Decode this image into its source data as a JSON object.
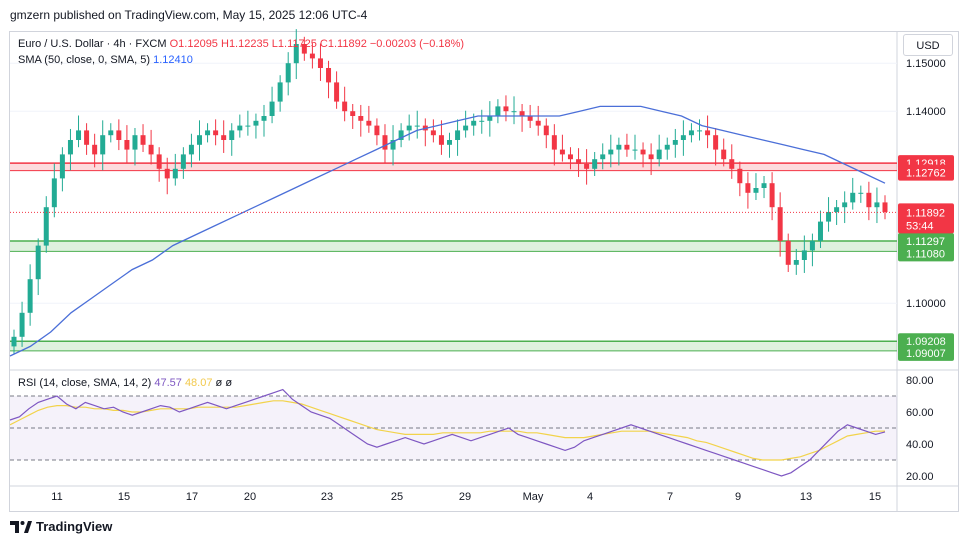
{
  "header": {
    "published_by": "gmzern published on TradingView.com, May 15, 2025 12:06 UTC-4"
  },
  "legend": {
    "symbol": "Euro / U.S. Dollar · 4h · FXCM",
    "open": "O1.12095",
    "high": "H1.12235",
    "low": "L1.11725",
    "close": "C1.11892",
    "change": "−0.00203 (−0.18%)",
    "sma_label": "SMA (50, close, 0, SMA, 5)",
    "sma_value": "1.12410"
  },
  "rsi_legend": {
    "label": "RSI (14, close, SMA, 14, 2)",
    "rsi_value": "47.57",
    "sma_value": "48.07",
    "extra": "ø",
    "extra2": "ø"
  },
  "currency_button": "USD",
  "footer": {
    "brand": "TradingView"
  },
  "colors": {
    "up": "#22ab94",
    "down": "#f23645",
    "sma": "#4b6fd8",
    "rsi": "#7e57c2",
    "rsi_sma": "#f2d34b",
    "resistance": "#f23645",
    "support": "#4caf50"
  },
  "chart_data": {
    "type": "candlestick",
    "symbol": "EURUSD",
    "timeframe": "4h",
    "price_axis": {
      "ticks": [
        1.15,
        1.14,
        1.1
      ],
      "tick_labels": [
        "1.15000",
        "1.14000",
        "1.10000"
      ],
      "range": [
        1.0865,
        1.1565
      ]
    },
    "x_axis_labels": [
      "11",
      "15",
      "17",
      "20",
      "23",
      "25",
      "29",
      "May",
      "4",
      "7",
      "9",
      "13",
      "15"
    ],
    "current_price": {
      "value": 1.11892,
      "label": "1.11892",
      "countdown": "53:44"
    },
    "zones": [
      {
        "kind": "resistance",
        "top": 1.12918,
        "bottom": 1.12762,
        "top_label": "1.12918",
        "bottom_label": "1.12762"
      },
      {
        "kind": "support",
        "top": 1.11297,
        "bottom": 1.1108,
        "top_label": "1.11297",
        "bottom_label": "1.11080"
      },
      {
        "kind": "support",
        "top": 1.09208,
        "bottom": 1.09007,
        "top_label": "1.09208",
        "bottom_label": "1.09007"
      }
    ],
    "close_path": [
      1.093,
      1.098,
      1.105,
      1.112,
      1.12,
      1.126,
      1.131,
      1.134,
      1.136,
      1.133,
      1.131,
      1.135,
      1.136,
      1.134,
      1.132,
      1.135,
      1.133,
      1.131,
      1.128,
      1.126,
      1.128,
      1.131,
      1.133,
      1.135,
      1.136,
      1.135,
      1.134,
      1.136,
      1.137,
      1.137,
      1.138,
      1.139,
      1.142,
      1.146,
      1.15,
      1.154,
      1.152,
      1.151,
      1.149,
      1.146,
      1.142,
      1.14,
      1.139,
      1.138,
      1.137,
      1.135,
      1.132,
      1.134,
      1.136,
      1.137,
      1.137,
      1.136,
      1.135,
      1.133,
      1.134,
      1.136,
      1.137,
      1.138,
      1.138,
      1.139,
      1.141,
      1.14,
      1.14,
      1.139,
      1.138,
      1.137,
      1.135,
      1.132,
      1.131,
      1.13,
      1.129,
      1.128,
      1.13,
      1.131,
      1.132,
      1.133,
      1.132,
      1.132,
      1.131,
      1.13,
      1.132,
      1.133,
      1.134,
      1.135,
      1.136,
      1.136,
      1.135,
      1.132,
      1.13,
      1.128,
      1.125,
      1.123,
      1.124,
      1.125,
      1.12,
      1.113,
      1.108,
      1.109,
      1.111,
      1.113,
      1.117,
      1.119,
      1.12,
      1.121,
      1.123,
      1.123,
      1.12,
      1.121,
      1.119
    ],
    "sma_path": [
      1.089,
      1.091,
      1.094,
      1.098,
      1.101,
      1.104,
      1.107,
      1.109,
      1.112,
      1.114,
      1.116,
      1.118,
      1.12,
      1.122,
      1.124,
      1.126,
      1.128,
      1.13,
      1.132,
      1.134,
      1.136,
      1.137,
      1.138,
      1.139,
      1.139,
      1.139,
      1.139,
      1.139,
      1.14,
      1.141,
      1.141,
      1.141,
      1.14,
      1.139,
      1.137,
      1.136,
      1.135,
      1.134,
      1.133,
      1.132,
      1.131,
      1.129,
      1.127,
      1.125
    ],
    "rsi": {
      "levels": [
        70,
        50,
        30
      ],
      "axis_ticks": [
        "80.00",
        "60.00",
        "40.00",
        "20.00"
      ],
      "range": [
        15,
        85
      ],
      "values": [
        55,
        57,
        62,
        66,
        68,
        70,
        65,
        62,
        66,
        64,
        62,
        63,
        60,
        58,
        60,
        62,
        64,
        63,
        60,
        62,
        64,
        66,
        64,
        62,
        64,
        66,
        68,
        70,
        72,
        74,
        68,
        64,
        60,
        58,
        56,
        52,
        48,
        44,
        40,
        38,
        40,
        42,
        44,
        42,
        40,
        42,
        44,
        46,
        44,
        42,
        44,
        46,
        48,
        50,
        46,
        44,
        42,
        40,
        38,
        36,
        38,
        42,
        44,
        46,
        48,
        50,
        52,
        50,
        48,
        46,
        44,
        42,
        40,
        38,
        36,
        34,
        32,
        30,
        28,
        26,
        24,
        22,
        20,
        22,
        26,
        30,
        36,
        42,
        48,
        52,
        50,
        48,
        46,
        47.57
      ],
      "sma_values": [
        52,
        55,
        58,
        61,
        63,
        64,
        64,
        63,
        63,
        62,
        62,
        61,
        61,
        60,
        60,
        61,
        62,
        62,
        62,
        62,
        63,
        63,
        63,
        63,
        63,
        64,
        65,
        66,
        67,
        67,
        66,
        65,
        63,
        61,
        59,
        57,
        55,
        53,
        51,
        49,
        48,
        47,
        46,
        46,
        46,
        46,
        47,
        47,
        47,
        47,
        47,
        48,
        48,
        48,
        48,
        47,
        47,
        46,
        45,
        44,
        44,
        44,
        45,
        46,
        47,
        48,
        48,
        48,
        48,
        47,
        46,
        45,
        44,
        42,
        41,
        39,
        37,
        35,
        33,
        31,
        30,
        30,
        30,
        31,
        32,
        34,
        36,
        39,
        42,
        45,
        46,
        47,
        48,
        48.07
      ]
    }
  }
}
